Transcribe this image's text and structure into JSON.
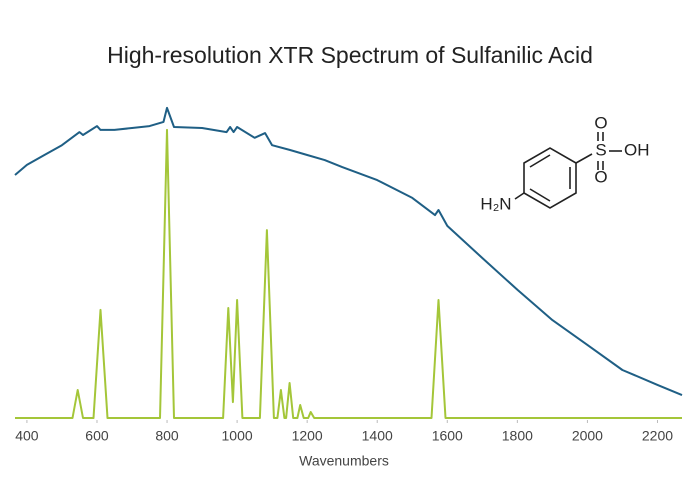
{
  "chart_data": {
    "type": "line",
    "title": "High-resolution XTR Spectrum of Sulfanilic Acid",
    "x_label": "Wavenumbers",
    "xlim": [
      366,
      2270
    ],
    "xticks": [
      400,
      600,
      800,
      1000,
      1200,
      1400,
      1600,
      1800,
      2000,
      2200
    ],
    "ylim": [
      0,
      100
    ],
    "series": [
      {
        "color": "#1f5f85",
        "x": [
          366,
          400,
          450,
          500,
          550,
          560,
          600,
          610,
          650,
          700,
          750,
          790,
          800,
          820,
          900,
          970,
          980,
          990,
          1000,
          1050,
          1080,
          1100,
          1150,
          1200,
          1250,
          1300,
          1400,
          1500,
          1565,
          1575,
          1600,
          1700,
          1800,
          1900,
          2000,
          2100,
          2200,
          2270
        ],
        "values": [
          76.4,
          79.6,
          82.7,
          85.8,
          89.9,
          89.0,
          91.8,
          90.6,
          90.6,
          91.2,
          91.8,
          93.1,
          97.5,
          91.5,
          91.2,
          89.9,
          91.5,
          89.9,
          91.5,
          88.1,
          89.6,
          85.8,
          84.3,
          82.7,
          81.1,
          78.9,
          74.8,
          69.2,
          63.8,
          65.4,
          60.4,
          50.3,
          40.3,
          30.8,
          23.0,
          15.1,
          10.4,
          7.2
        ]
      },
      {
        "color": "#a4c639",
        "x": [
          366,
          530,
          545,
          560,
          590,
          610,
          630,
          780,
          800,
          820,
          960,
          975,
          988,
          1000,
          1015,
          1065,
          1085,
          1105,
          1115,
          1125,
          1135,
          1140,
          1150,
          1160,
          1172,
          1180,
          1190,
          1203,
          1210,
          1220,
          1555,
          1575,
          1595,
          2270
        ],
        "values": [
          0,
          0,
          8.8,
          0,
          0,
          34,
          0,
          0,
          90.6,
          0,
          0,
          34.6,
          5,
          37.1,
          0,
          0,
          59.1,
          0,
          0,
          8.8,
          0,
          0,
          11,
          0,
          0,
          4.1,
          0,
          0,
          1.9,
          0,
          0,
          37.1,
          0,
          0
        ]
      }
    ],
    "structure_labels": [
      "H₂N",
      "S",
      "O",
      "O",
      "OH"
    ]
  }
}
